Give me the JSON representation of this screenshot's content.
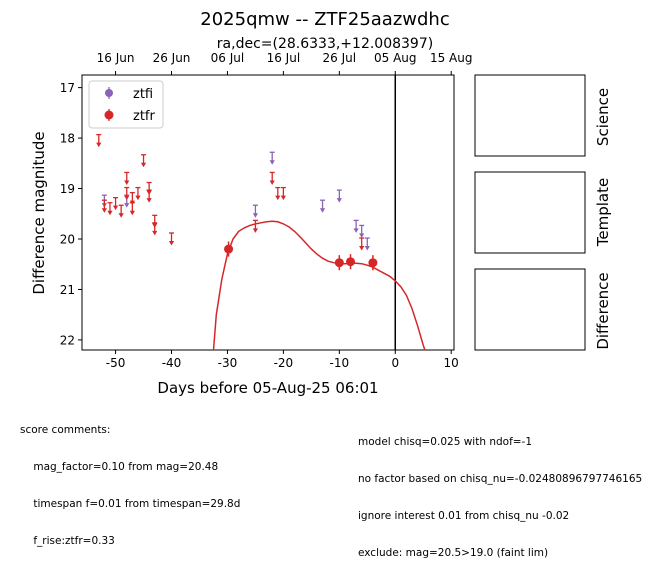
{
  "chart_data": {
    "type": "scatter",
    "title": "2025qmw -- ZTF25aazwdhc",
    "subtitle": "ra,dec=(28.6333,+12.008397)",
    "xlabel": "Days before 05-Aug-25 06:01",
    "ylabel": "Difference magnitude",
    "xlim": [
      -56,
      10.5
    ],
    "ylim": [
      22.2,
      16.75
    ],
    "y_inverted": true,
    "x_ticks": [
      -50,
      -40,
      -30,
      -20,
      -10,
      0,
      10
    ],
    "y_ticks": [
      17,
      18,
      19,
      20,
      21,
      22
    ],
    "top_axis_ticks": [
      {
        "label": "16 Jun",
        "x": -50
      },
      {
        "label": "26 Jun",
        "x": -40
      },
      {
        "label": "06 Jul",
        "x": -30
      },
      {
        "label": "16 Jul",
        "x": -20
      },
      {
        "label": "26 Jul",
        "x": -10
      },
      {
        "label": "05 Aug",
        "x": 0
      },
      {
        "label": "15 Aug",
        "x": 10
      }
    ],
    "vline_x": 0,
    "legend": {
      "placement": "top-left",
      "entries": [
        "ztfi",
        "ztfr"
      ]
    },
    "series": [
      {
        "name": "ztfi",
        "color": "#8a63b8",
        "upper_limits": [
          {
            "x": -52.0,
            "y": 19.25
          },
          {
            "x": -48.0,
            "y": 19.25
          },
          {
            "x": -25.0,
            "y": 19.45
          },
          {
            "x": -22.0,
            "y": 18.4
          },
          {
            "x": -13.0,
            "y": 19.35
          },
          {
            "x": -10.0,
            "y": 19.15
          },
          {
            "x": -7.0,
            "y": 19.75
          },
          {
            "x": -6.0,
            "y": 19.85
          },
          {
            "x": -5.0,
            "y": 20.1
          }
        ],
        "detections": []
      },
      {
        "name": "ztfr",
        "color": "#d62728",
        "upper_limits": [
          {
            "x": -53.0,
            "y": 18.05
          },
          {
            "x": -52.0,
            "y": 19.35
          },
          {
            "x": -51.0,
            "y": 19.4
          },
          {
            "x": -50.0,
            "y": 19.3
          },
          {
            "x": -49.0,
            "y": 19.45
          },
          {
            "x": -48.0,
            "y": 18.8
          },
          {
            "x": -48.0,
            "y": 19.1
          },
          {
            "x": -47.0,
            "y": 19.2
          },
          {
            "x": -47.0,
            "y": 19.4
          },
          {
            "x": -46.0,
            "y": 19.1
          },
          {
            "x": -45.0,
            "y": 18.45
          },
          {
            "x": -44.0,
            "y": 19.0
          },
          {
            "x": -44.0,
            "y": 19.15
          },
          {
            "x": -43.0,
            "y": 19.65
          },
          {
            "x": -43.0,
            "y": 19.8
          },
          {
            "x": -40.0,
            "y": 20.0
          },
          {
            "x": -25.0,
            "y": 19.75
          },
          {
            "x": -22.0,
            "y": 18.8
          },
          {
            "x": -21.0,
            "y": 19.1
          },
          {
            "x": -20.0,
            "y": 19.1
          },
          {
            "x": -6.0,
            "y": 20.1
          }
        ],
        "detections": [
          {
            "x": -29.8,
            "y": 20.2,
            "err": 0.15
          },
          {
            "x": -10.0,
            "y": 20.47,
            "err": 0.15
          },
          {
            "x": -8.0,
            "y": 20.45,
            "err": 0.15
          },
          {
            "x": -4.0,
            "y": 20.47,
            "err": 0.15
          }
        ]
      }
    ],
    "model_curve": {
      "color": "#d62728",
      "points": [
        [
          -32.5,
          22.2
        ],
        [
          -32,
          21.5
        ],
        [
          -31,
          20.8
        ],
        [
          -30,
          20.3
        ],
        [
          -29,
          20.0
        ],
        [
          -28,
          19.85
        ],
        [
          -27,
          19.78
        ],
        [
          -26,
          19.73
        ],
        [
          -25,
          19.7
        ],
        [
          -24,
          19.68
        ],
        [
          -23,
          19.66
        ],
        [
          -22,
          19.65
        ],
        [
          -21,
          19.66
        ],
        [
          -20,
          19.7
        ],
        [
          -19,
          19.76
        ],
        [
          -18,
          19.85
        ],
        [
          -17,
          19.96
        ],
        [
          -16,
          20.08
        ],
        [
          -15,
          20.2
        ],
        [
          -14,
          20.3
        ],
        [
          -13,
          20.38
        ],
        [
          -12,
          20.44
        ],
        [
          -11,
          20.47
        ],
        [
          -10,
          20.49
        ],
        [
          -9,
          20.49
        ],
        [
          -8,
          20.48
        ],
        [
          -7,
          20.48
        ],
        [
          -6,
          20.49
        ],
        [
          -5,
          20.52
        ],
        [
          -4,
          20.56
        ],
        [
          -3,
          20.62
        ],
        [
          -2,
          20.68
        ],
        [
          -1,
          20.74
        ],
        [
          0,
          20.83
        ],
        [
          1,
          20.95
        ],
        [
          2,
          21.12
        ],
        [
          3,
          21.38
        ],
        [
          4,
          21.72
        ],
        [
          5,
          22.1
        ],
        [
          5.3,
          22.2
        ]
      ]
    }
  },
  "side_panels": [
    {
      "label": "Science"
    },
    {
      "label": "Template"
    },
    {
      "label": "Difference"
    }
  ],
  "comments_left": [
    "score comments:",
    "    mag_factor=0.10 from mag=20.48",
    "    timespan f=0.01 from timespan=29.8d",
    "    f_rise:ztfr=0.33"
  ],
  "comments_right": [
    "model chisq=0.025 with ndof=-1",
    "no factor based on chisq_nu=-0.02480896797746165",
    "ignore interest 0.01 from chisq_nu -0.02",
    "exclude: mag=20.5>19.0 (faint lim)"
  ]
}
